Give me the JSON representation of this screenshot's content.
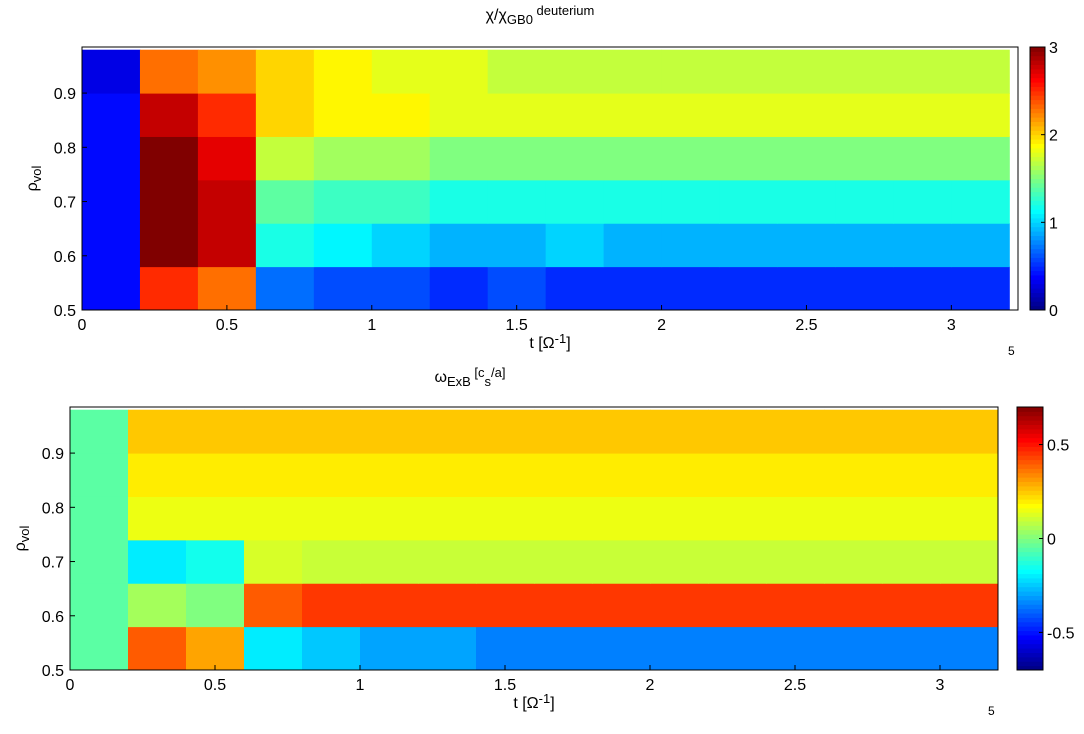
{
  "chart_data": [
    {
      "type": "heatmap",
      "title": [
        {
          "text": "χ/χ"
        },
        {
          "text": "GB0",
          "shift": "sub"
        },
        {
          "text": " deuterium",
          "shift": "sup"
        }
      ],
      "xlabel": [
        {
          "text": "t [Ω"
        },
        {
          "text": "-1",
          "shift": "sup"
        },
        {
          "text": "]"
        }
      ],
      "ylabel": [
        {
          "text": "ρ"
        },
        {
          "text": "vol",
          "shift": "sub"
        }
      ],
      "x_exponent": "5",
      "xlim": [
        0,
        3.23
      ],
      "ylim": [
        0.5,
        0.985
      ],
      "xticks": [
        0,
        0.5,
        1,
        1.5,
        2,
        2.5,
        3
      ],
      "yticks": [
        0.5,
        0.6,
        0.7,
        0.8,
        0.9
      ],
      "clim": [
        0,
        3
      ],
      "cticks": [
        0,
        1,
        2,
        3
      ],
      "colormap": "jet",
      "x": [
        0.1,
        0.3,
        0.5,
        0.7,
        0.9,
        1.1,
        1.3,
        1.5,
        1.7,
        1.9,
        2.1,
        2.3,
        2.5,
        2.7,
        2.9,
        3.1
      ],
      "y": [
        0.54,
        0.62,
        0.7,
        0.78,
        0.86,
        0.94
      ],
      "z": [
        [
          0.4,
          2.5,
          2.3,
          0.7,
          0.6,
          0.6,
          0.5,
          0.6,
          0.5,
          0.5,
          0.5,
          0.5,
          0.5,
          0.5,
          0.5,
          0.5
        ],
        [
          0.4,
          3,
          2.8,
          1.2,
          1.1,
          1.0,
          0.9,
          0.9,
          1.0,
          0.9,
          0.9,
          0.9,
          0.9,
          0.9,
          0.9,
          0.9
        ],
        [
          0.4,
          3,
          2.8,
          1.4,
          1.3,
          1.3,
          1.2,
          1.2,
          1.2,
          1.2,
          1.2,
          1.2,
          1.2,
          1.2,
          1.2,
          1.2
        ],
        [
          0.4,
          3,
          2.7,
          1.7,
          1.6,
          1.6,
          1.5,
          1.5,
          1.5,
          1.5,
          1.5,
          1.5,
          1.5,
          1.5,
          1.5,
          1.5
        ],
        [
          0.4,
          2.8,
          2.5,
          2.0,
          1.9,
          1.9,
          1.8,
          1.8,
          1.8,
          1.8,
          1.8,
          1.8,
          1.8,
          1.8,
          1.8,
          1.8
        ],
        [
          0.3,
          2.3,
          2.2,
          2.0,
          1.9,
          1.8,
          1.8,
          1.7,
          1.7,
          1.7,
          1.7,
          1.7,
          1.7,
          1.7,
          1.7,
          1.7
        ]
      ]
    },
    {
      "type": "heatmap",
      "title": [
        {
          "text": "ω"
        },
        {
          "text": "ExB",
          "shift": "sub"
        },
        {
          "text": " [c",
          "shift": "sup"
        },
        {
          "text": "s",
          "shift": "sub"
        },
        {
          "text": "/a]",
          "shift": "sup"
        }
      ],
      "xlabel": [
        {
          "text": "t [Ω"
        },
        {
          "text": "-1",
          "shift": "sup"
        },
        {
          "text": "]"
        }
      ],
      "ylabel": [
        {
          "text": "ρ"
        },
        {
          "text": "vol",
          "shift": "sub"
        }
      ],
      "x_exponent": "5",
      "xlim": [
        0,
        3.2
      ],
      "ylim": [
        0.5,
        0.985
      ],
      "xticks": [
        0,
        0.5,
        1,
        1.5,
        2,
        2.5,
        3
      ],
      "yticks": [
        0.5,
        0.6,
        0.7,
        0.8,
        0.9
      ],
      "clim": [
        -0.7,
        0.7
      ],
      "cticks": [
        -0.5,
        0,
        0.5
      ],
      "colormap": "jet",
      "x": [
        0.1,
        0.3,
        0.5,
        0.7,
        0.9,
        1.1,
        1.3,
        1.5,
        1.7,
        1.9,
        2.1,
        2.3,
        2.5,
        2.7,
        2.9,
        3.1
      ],
      "y": [
        0.54,
        0.62,
        0.7,
        0.78,
        0.86,
        0.94
      ],
      "z": [
        [
          -0.05,
          0.4,
          0.3,
          -0.2,
          -0.25,
          -0.3,
          -0.3,
          -0.35,
          -0.35,
          -0.35,
          -0.35,
          -0.35,
          -0.35,
          -0.35,
          -0.35,
          -0.35
        ],
        [
          -0.05,
          0.05,
          0.0,
          0.4,
          0.45,
          0.45,
          0.45,
          0.45,
          0.45,
          0.45,
          0.45,
          0.45,
          0.45,
          0.45,
          0.45,
          0.45
        ],
        [
          -0.05,
          -0.2,
          -0.15,
          0.12,
          0.1,
          0.1,
          0.1,
          0.1,
          0.1,
          0.1,
          0.1,
          0.1,
          0.1,
          0.1,
          0.1,
          0.1
        ],
        [
          -0.05,
          0.15,
          0.15,
          0.15,
          0.15,
          0.15,
          0.15,
          0.15,
          0.15,
          0.15,
          0.15,
          0.15,
          0.15,
          0.15,
          0.15,
          0.15
        ],
        [
          -0.05,
          0.2,
          0.2,
          0.2,
          0.2,
          0.2,
          0.2,
          0.2,
          0.2,
          0.2,
          0.2,
          0.2,
          0.2,
          0.2,
          0.2,
          0.2
        ],
        [
          -0.05,
          0.25,
          0.25,
          0.25,
          0.25,
          0.25,
          0.25,
          0.25,
          0.25,
          0.25,
          0.25,
          0.25,
          0.25,
          0.25,
          0.25,
          0.25
        ]
      ]
    }
  ]
}
